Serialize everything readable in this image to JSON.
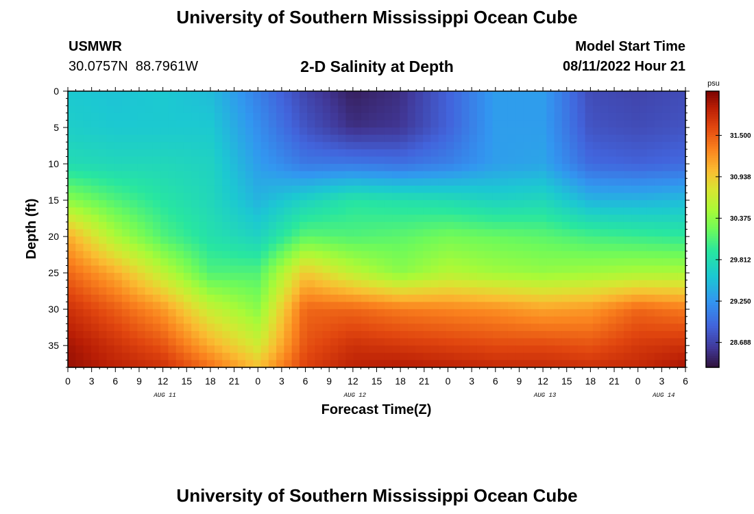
{
  "page": {
    "title": "University of Southern Mississippi Ocean Cube",
    "station_name": "USMWR",
    "station_coords": "30.0757N  88.7961W",
    "subtitle": "2-D Salinity at Depth",
    "model_label": "Model Start Time",
    "model_time": "08/11/2022 Hour 21",
    "footer_title": "University of Southern Mississippi Ocean Cube"
  },
  "chart_data": {
    "type": "heatmap",
    "xlabel": "Forecast Time(Z)",
    "ylabel": "Depth (ft)",
    "x_range_hours": [
      0,
      78
    ],
    "x_tick_labels": [
      "0",
      "3",
      "6",
      "9",
      "12",
      "15",
      "18",
      "21",
      "0",
      "3",
      "6",
      "9",
      "12",
      "15",
      "18",
      "21",
      "0",
      "3",
      "6",
      "9",
      "12",
      "15",
      "18",
      "21",
      "0",
      "3",
      "6"
    ],
    "day_labels": [
      {
        "label": "AUG 11",
        "hour": 12
      },
      {
        "label": "AUG 12",
        "hour": 36
      },
      {
        "label": "AUG 13",
        "hour": 60
      },
      {
        "label": "AUG 14",
        "hour": 75
      }
    ],
    "y_range": [
      0,
      38
    ],
    "y_ticks": [
      0,
      5,
      10,
      15,
      20,
      25,
      30,
      35
    ],
    "colorbar": {
      "unit": "psu",
      "ticks": [
        "31.500",
        "30.938",
        "30.375",
        "29.812",
        "29.250",
        "28.688"
      ],
      "tick_values": [
        31.5,
        30.938,
        30.375,
        29.812,
        29.25,
        28.688
      ],
      "range": [
        28.35,
        32.1
      ]
    },
    "depths_ft": [
      0,
      5,
      10,
      15,
      20,
      25,
      30,
      35,
      38
    ],
    "times_hr": [
      0,
      6,
      12,
      18,
      24,
      30,
      36,
      42,
      48,
      54,
      60,
      66,
      72,
      78
    ],
    "salinity_psu": [
      [
        29.6,
        29.55,
        29.6,
        29.5,
        29.1,
        28.7,
        28.45,
        28.55,
        28.9,
        29.3,
        29.3,
        28.75,
        28.7,
        28.75
      ],
      [
        29.65,
        29.6,
        29.6,
        29.6,
        29.2,
        28.8,
        28.55,
        28.6,
        28.9,
        29.3,
        29.3,
        28.8,
        28.75,
        28.8
      ],
      [
        29.8,
        29.75,
        29.75,
        29.7,
        29.3,
        29.05,
        29.05,
        29.0,
        29.1,
        29.3,
        29.35,
        28.95,
        28.9,
        28.95
      ],
      [
        30.35,
        30.1,
        29.9,
        29.75,
        29.45,
        29.7,
        29.9,
        29.85,
        29.8,
        29.7,
        29.75,
        29.45,
        29.45,
        29.5
      ],
      [
        31.1,
        30.5,
        30.1,
        29.85,
        29.7,
        30.15,
        30.1,
        30.15,
        30.25,
        30.2,
        30.15,
        30.05,
        30.0,
        29.95
      ],
      [
        31.45,
        31.1,
        30.6,
        30.1,
        30.1,
        30.95,
        30.6,
        30.35,
        30.55,
        30.45,
        30.4,
        30.45,
        30.5,
        30.5
      ],
      [
        31.75,
        31.5,
        31.2,
        30.65,
        30.35,
        31.45,
        31.45,
        31.35,
        31.3,
        31.25,
        31.15,
        31.2,
        31.45,
        31.35
      ],
      [
        31.95,
        31.75,
        31.55,
        31.1,
        30.7,
        31.55,
        31.75,
        31.7,
        31.65,
        31.6,
        31.6,
        31.55,
        31.7,
        31.75
      ],
      [
        32.0,
        31.85,
        31.75,
        31.4,
        31.0,
        31.65,
        31.85,
        31.9,
        31.85,
        31.8,
        31.8,
        31.75,
        31.8,
        31.95
      ]
    ]
  }
}
